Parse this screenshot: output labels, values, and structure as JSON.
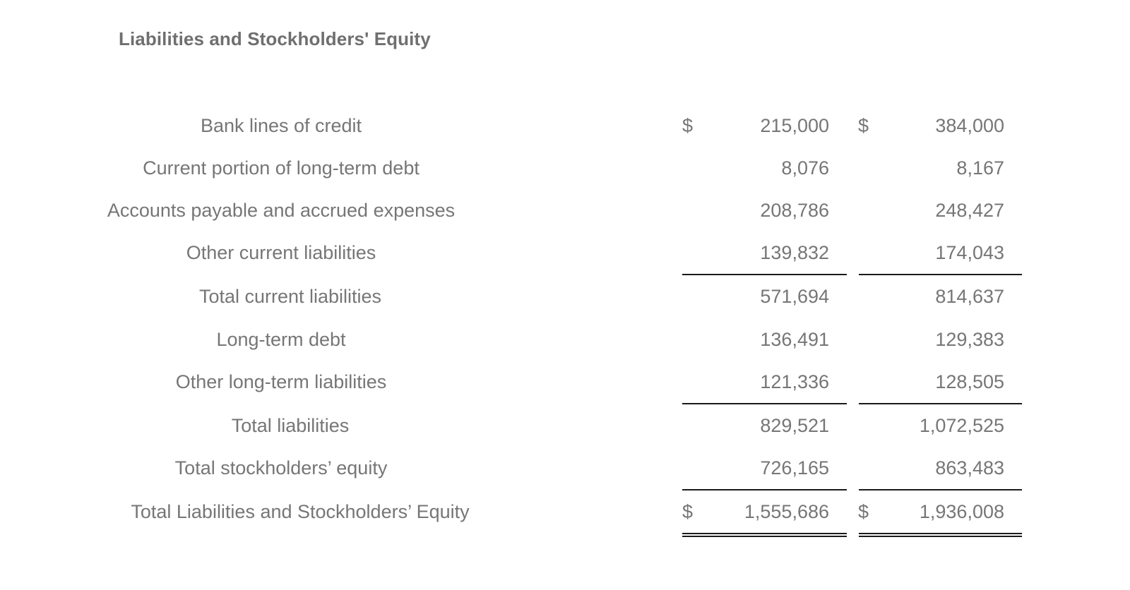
{
  "section": {
    "title": "Liabilities and Stockholders' Equity"
  },
  "currency_symbol": "$",
  "rows": [
    {
      "label": "Bank lines of credit",
      "col1": "215,000",
      "col2": "384,000"
    },
    {
      "label": "Current portion of long-term debt",
      "col1": "8,076",
      "col2": "8,167"
    },
    {
      "label": "Accounts payable and accrued expenses",
      "col1": "208,786",
      "col2": "248,427"
    },
    {
      "label": "Other current liabilities",
      "col1": "139,832",
      "col2": "174,043"
    },
    {
      "label": "Total current liabilities",
      "col1": "571,694",
      "col2": "814,637"
    },
    {
      "label": "Long-term debt",
      "col1": "136,491",
      "col2": "129,383"
    },
    {
      "label": "Other long-term liabilities",
      "col1": "121,336",
      "col2": "128,505"
    },
    {
      "label": "Total liabilities",
      "col1": "829,521",
      "col2": "1,072,525"
    },
    {
      "label": "Total stockholders’ equity",
      "col1": "726,165",
      "col2": "863,483"
    },
    {
      "label": "Total Liabilities and Stockholders’ Equity",
      "col1": "1,555,686",
      "col2": "1,936,008"
    }
  ]
}
